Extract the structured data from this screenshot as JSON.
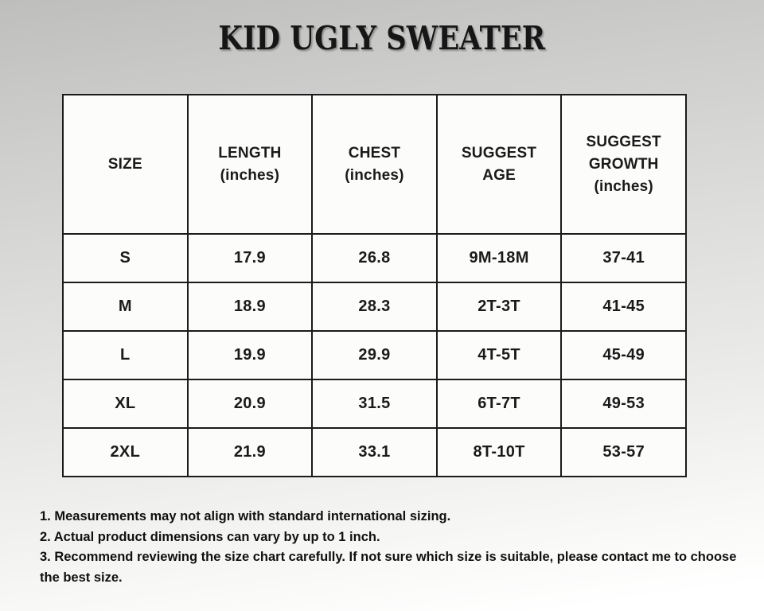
{
  "title": "KID UGLY SWEATER",
  "table": {
    "headers": [
      "SIZE",
      "LENGTH\n(inches)",
      "CHEST\n(inches)",
      "SUGGEST\nAGE",
      "SUGGEST\nGROWTH\n(inches)"
    ],
    "rows": [
      {
        "size": "S",
        "length": "17.9",
        "chest": "26.8",
        "age": "9M-18M",
        "growth": "37-41"
      },
      {
        "size": "M",
        "length": "18.9",
        "chest": "28.3",
        "age": "2T-3T",
        "growth": "41-45"
      },
      {
        "size": "L",
        "length": "19.9",
        "chest": "29.9",
        "age": "4T-5T",
        "growth": "45-49"
      },
      {
        "size": "XL",
        "length": "20.9",
        "chest": "31.5",
        "age": "6T-7T",
        "growth": "49-53"
      },
      {
        "size": "2XL",
        "length": "21.9",
        "chest": "33.1",
        "age": "8T-10T",
        "growth": "53-57"
      }
    ]
  },
  "notes": [
    "1. Measurements may not align with standard international sizing.",
    "2. Actual product dimensions can vary by up to 1 inch.",
    "3. Recommend reviewing the size chart carefully. If not sure which size is suitable, please contact me to choose the best size."
  ],
  "colors": {
    "background_top": "#bebebc",
    "background_bottom": "#ffffff",
    "cell_background": "#fcfcfb",
    "border": "#1b1b1b",
    "text": "#141414"
  }
}
